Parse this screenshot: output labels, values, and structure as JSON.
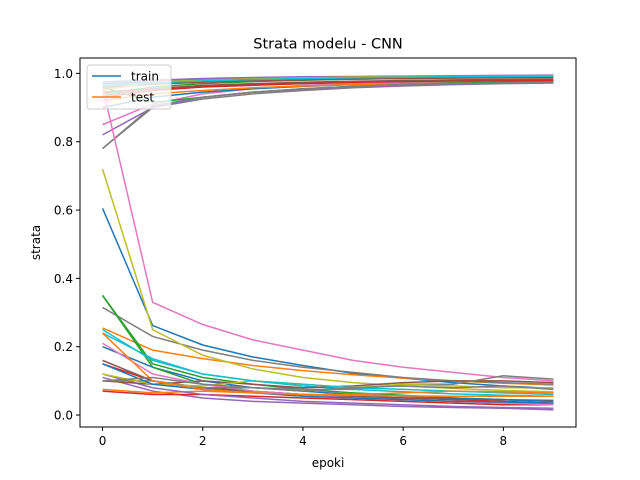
{
  "chart_data": {
    "type": "line",
    "title": "Strata modelu - CNN",
    "xlabel": "epoki",
    "ylabel": "strata",
    "xlim": [
      -0.45,
      9.45
    ],
    "ylim": [
      -0.035,
      1.045
    ],
    "x_ticks": [
      0,
      2,
      4,
      6,
      8
    ],
    "y_ticks": [
      0.0,
      0.2,
      0.4,
      0.6,
      0.8,
      1.0
    ],
    "grid": false,
    "legend": {
      "position": "top-left",
      "entries": [
        {
          "label": "train",
          "color": "#1f77b4"
        },
        {
          "label": "test",
          "color": "#ff7f0e"
        }
      ]
    },
    "x": [
      0,
      1,
      2,
      3,
      4,
      5,
      6,
      7,
      8,
      9
    ],
    "series": [
      {
        "color": "#1f77b4",
        "values": [
          0.97,
          0.975,
          0.982,
          0.986,
          0.988,
          0.99,
          0.991,
          0.992,
          0.993,
          0.994
        ]
      },
      {
        "color": "#ff7f0e",
        "values": [
          0.955,
          0.97,
          0.978,
          0.982,
          0.985,
          0.987,
          0.988,
          0.989,
          0.99,
          0.991
        ]
      },
      {
        "color": "#2ca02c",
        "values": [
          0.94,
          0.96,
          0.97,
          0.976,
          0.98,
          0.983,
          0.985,
          0.987,
          0.988,
          0.989
        ]
      },
      {
        "color": "#d62728",
        "values": [
          0.93,
          0.95,
          0.96,
          0.965,
          0.97,
          0.973,
          0.975,
          0.977,
          0.978,
          0.979
        ]
      },
      {
        "color": "#9467bd",
        "values": [
          0.975,
          0.98,
          0.985,
          0.988,
          0.99,
          0.991,
          0.992,
          0.993,
          0.994,
          0.995
        ]
      },
      {
        "color": "#8c564b",
        "values": [
          0.96,
          0.968,
          0.974,
          0.978,
          0.981,
          0.983,
          0.985,
          0.986,
          0.987,
          0.988
        ]
      },
      {
        "color": "#e377c2",
        "values": [
          0.85,
          0.91,
          0.94,
          0.955,
          0.965,
          0.97,
          0.974,
          0.977,
          0.979,
          0.98
        ]
      },
      {
        "color": "#7f7f7f",
        "values": [
          0.78,
          0.9,
          0.925,
          0.94,
          0.95,
          0.958,
          0.963,
          0.967,
          0.97,
          0.972
        ]
      },
      {
        "color": "#bcbd22",
        "values": [
          0.95,
          0.975,
          0.98,
          0.984,
          0.987,
          0.989,
          0.99,
          0.991,
          0.992,
          0.993
        ]
      },
      {
        "color": "#17becf",
        "values": [
          0.965,
          0.972,
          0.978,
          0.982,
          0.985,
          0.987,
          0.989,
          0.99,
          0.991,
          0.992
        ]
      },
      {
        "color": "#1f77b4",
        "values": [
          0.9,
          0.93,
          0.945,
          0.955,
          0.962,
          0.967,
          0.97,
          0.973,
          0.975,
          0.977
        ]
      },
      {
        "color": "#ff7f0e",
        "values": [
          0.92,
          0.94,
          0.95,
          0.958,
          0.963,
          0.967,
          0.97,
          0.972,
          0.974,
          0.976
        ]
      },
      {
        "color": "#2ca02c",
        "values": [
          0.96,
          0.915,
          0.93,
          0.945,
          0.955,
          0.962,
          0.967,
          0.971,
          0.974,
          0.976
        ]
      },
      {
        "color": "#d62728",
        "values": [
          0.945,
          0.955,
          0.962,
          0.967,
          0.971,
          0.974,
          0.976,
          0.978,
          0.979,
          0.98
        ]
      },
      {
        "color": "#9467bd",
        "values": [
          0.82,
          0.9,
          0.93,
          0.945,
          0.953,
          0.96,
          0.964,
          0.968,
          0.971,
          0.973
        ]
      },
      {
        "color": "#8c564b",
        "values": [
          0.935,
          0.955,
          0.965,
          0.97,
          0.974,
          0.977,
          0.979,
          0.981,
          0.982,
          0.983
        ]
      },
      {
        "color": "#7f7f7f",
        "values": [
          0.78,
          0.905,
          0.93,
          0.945,
          0.955,
          0.962,
          0.967,
          0.97,
          0.972,
          0.974
        ]
      },
      {
        "color": "#1f77b4",
        "values": [
          0.605,
          0.262,
          0.205,
          0.17,
          0.145,
          0.122,
          0.108,
          0.095,
          0.085,
          0.078
        ]
      },
      {
        "color": "#ff7f0e",
        "values": [
          0.255,
          0.19,
          0.165,
          0.145,
          0.13,
          0.118,
          0.108,
          0.1,
          0.093,
          0.088
        ]
      },
      {
        "color": "#2ca02c",
        "values": [
          0.35,
          0.15,
          0.11,
          0.09,
          0.075,
          0.065,
          0.058,
          0.05,
          0.045,
          0.04
        ]
      },
      {
        "color": "#d62728",
        "values": [
          0.15,
          0.1,
          0.08,
          0.07,
          0.06,
          0.055,
          0.05,
          0.045,
          0.04,
          0.035
        ]
      },
      {
        "color": "#9467bd",
        "values": [
          0.11,
          0.07,
          0.05,
          0.04,
          0.035,
          0.03,
          0.025,
          0.022,
          0.02,
          0.015
        ]
      },
      {
        "color": "#8c564b",
        "values": [
          0.16,
          0.1,
          0.08,
          0.068,
          0.06,
          0.055,
          0.05,
          0.047,
          0.045,
          0.043
        ]
      },
      {
        "color": "#e377c2",
        "values": [
          0.96,
          0.33,
          0.265,
          0.22,
          0.19,
          0.16,
          0.14,
          0.125,
          0.11,
          0.1
        ]
      },
      {
        "color": "#7f7f7f",
        "values": [
          0.315,
          0.23,
          0.19,
          0.16,
          0.14,
          0.125,
          0.11,
          0.1,
          0.095,
          0.09
        ]
      },
      {
        "color": "#bcbd22",
        "values": [
          0.72,
          0.25,
          0.175,
          0.135,
          0.11,
          0.095,
          0.085,
          0.078,
          0.072,
          0.068
        ]
      },
      {
        "color": "#17becf",
        "values": [
          0.24,
          0.165,
          0.12,
          0.1,
          0.085,
          0.075,
          0.068,
          0.062,
          0.058,
          0.055
        ]
      },
      {
        "color": "#1f77b4",
        "values": [
          0.2,
          0.14,
          0.1,
          0.08,
          0.07,
          0.06,
          0.055,
          0.05,
          0.045,
          0.04
        ]
      },
      {
        "color": "#ff7f0e",
        "values": [
          0.075,
          0.065,
          0.07,
          0.065,
          0.06,
          0.058,
          0.056,
          0.055,
          0.055,
          0.055
        ]
      },
      {
        "color": "#2ca02c",
        "values": [
          0.35,
          0.14,
          0.09,
          0.07,
          0.06,
          0.05,
          0.045,
          0.04,
          0.035,
          0.03
        ]
      },
      {
        "color": "#d62728",
        "values": [
          0.07,
          0.06,
          0.06,
          0.055,
          0.05,
          0.045,
          0.04,
          0.035,
          0.03,
          0.03
        ]
      },
      {
        "color": "#9467bd",
        "values": [
          0.12,
          0.08,
          0.06,
          0.05,
          0.04,
          0.035,
          0.03,
          0.025,
          0.022,
          0.02
        ]
      },
      {
        "color": "#8c564b",
        "values": [
          0.1,
          0.09,
          0.1,
          0.09,
          0.08,
          0.085,
          0.095,
          0.1,
          0.1,
          0.095
        ]
      },
      {
        "color": "#e377c2",
        "values": [
          0.21,
          0.12,
          0.09,
          0.07,
          0.06,
          0.05,
          0.045,
          0.04,
          0.035,
          0.03
        ]
      },
      {
        "color": "#7f7f7f",
        "values": [
          0.1,
          0.1,
          0.08,
          0.08,
          0.075,
          0.075,
          0.09,
          0.09,
          0.115,
          0.105
        ]
      },
      {
        "color": "#bcbd22",
        "values": [
          0.12,
          0.09,
          0.085,
          0.1,
          0.09,
          0.08,
          0.09,
          0.085,
          0.08,
          0.08
        ]
      },
      {
        "color": "#17becf",
        "values": [
          0.25,
          0.16,
          0.12,
          0.1,
          0.09,
          0.08,
          0.075,
          0.07,
          0.065,
          0.06
        ]
      },
      {
        "color": "#1f77b4",
        "values": [
          0.15,
          0.09,
          0.075,
          0.065,
          0.055,
          0.05,
          0.045,
          0.04,
          0.038,
          0.035
        ]
      },
      {
        "color": "#ff7f0e",
        "values": [
          0.24,
          0.1,
          0.075,
          0.065,
          0.06,
          0.06,
          0.065,
          0.07,
          0.068,
          0.065
        ]
      },
      {
        "color": "#7f7f7f",
        "values": [
          0.1,
          0.11,
          0.09,
          0.08,
          0.07,
          0.08,
          0.085,
          0.08,
          0.085,
          0.075
        ]
      }
    ]
  }
}
